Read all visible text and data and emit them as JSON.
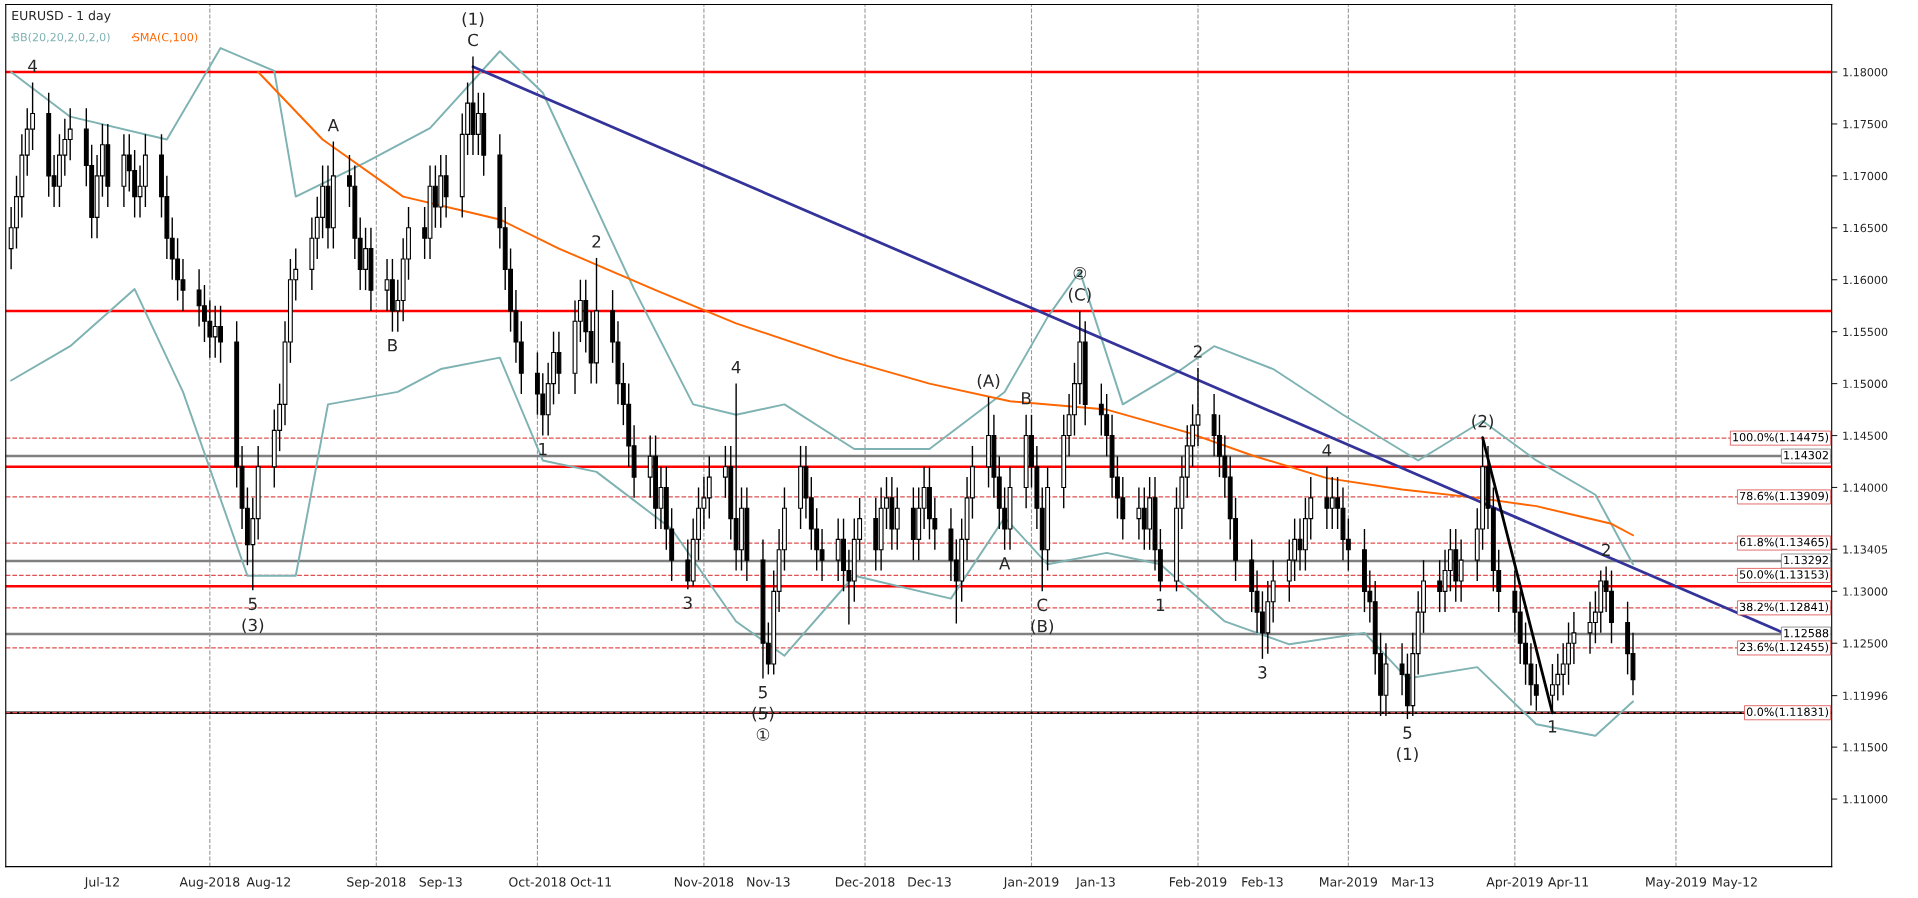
{
  "chart_data": {
    "type": "candlestick",
    "title": "EURUSD - 1 day",
    "x": [
      "2018-06-25",
      "2018-06-26",
      "2018-06-27",
      "2018-06-28",
      "2018-06-29",
      "2018-07-02",
      "2018-07-03",
      "2018-07-04",
      "2018-07-05",
      "2018-07-06",
      "2018-07-09",
      "2018-07-10",
      "2018-07-11",
      "2018-07-12",
      "2018-07-13",
      "2018-07-16",
      "2018-07-17",
      "2018-07-18",
      "2018-07-19",
      "2018-07-20",
      "2018-07-23",
      "2018-07-24",
      "2018-07-25",
      "2018-07-26",
      "2018-07-27",
      "2018-07-30",
      "2018-07-31",
      "2018-08-01",
      "2018-08-02",
      "2018-08-03",
      "2018-08-06",
      "2018-08-07",
      "2018-08-08",
      "2018-08-09",
      "2018-08-10",
      "2018-08-13",
      "2018-08-14",
      "2018-08-15",
      "2018-08-16",
      "2018-08-17",
      "2018-08-20",
      "2018-08-21",
      "2018-08-22",
      "2018-08-23",
      "2018-08-24",
      "2018-08-27",
      "2018-08-28",
      "2018-08-29",
      "2018-08-30",
      "2018-08-31",
      "2018-09-03",
      "2018-09-04",
      "2018-09-05",
      "2018-09-06",
      "2018-09-07",
      "2018-09-10",
      "2018-09-11",
      "2018-09-12",
      "2018-09-13",
      "2018-09-14",
      "2018-09-17",
      "2018-09-18",
      "2018-09-19",
      "2018-09-20",
      "2018-09-21",
      "2018-09-24",
      "2018-09-25",
      "2018-09-26",
      "2018-09-27",
      "2018-09-28",
      "2018-10-01",
      "2018-10-02",
      "2018-10-03",
      "2018-10-04",
      "2018-10-05",
      "2018-10-08",
      "2018-10-09",
      "2018-10-10",
      "2018-10-11",
      "2018-10-12",
      "2018-10-15",
      "2018-10-16",
      "2018-10-17",
      "2018-10-18",
      "2018-10-19",
      "2018-10-22",
      "2018-10-23",
      "2018-10-24",
      "2018-10-25",
      "2018-10-26",
      "2018-10-29",
      "2018-10-30",
      "2018-10-31",
      "2018-11-01",
      "2018-11-02",
      "2018-11-05",
      "2018-11-06",
      "2018-11-07",
      "2018-11-08",
      "2018-11-09",
      "2018-11-12",
      "2018-11-13",
      "2018-11-14",
      "2018-11-15",
      "2018-11-16",
      "2018-11-19",
      "2018-11-20",
      "2018-11-21",
      "2018-11-22",
      "2018-11-23",
      "2018-11-26",
      "2018-11-27",
      "2018-11-28",
      "2018-11-29",
      "2018-11-30",
      "2018-12-03",
      "2018-12-04",
      "2018-12-05",
      "2018-12-06",
      "2018-12-07",
      "2018-12-10",
      "2018-12-11",
      "2018-12-12",
      "2018-12-13",
      "2018-12-14",
      "2018-12-17",
      "2018-12-18",
      "2018-12-19",
      "2018-12-20",
      "2018-12-21",
      "2018-12-24",
      "2018-12-25",
      "2018-12-26",
      "2018-12-27",
      "2018-12-28",
      "2018-12-31",
      "2019-01-01",
      "2019-01-02",
      "2019-01-03",
      "2019-01-04",
      "2019-01-07",
      "2019-01-08",
      "2019-01-09",
      "2019-01-10",
      "2019-01-11",
      "2019-01-14",
      "2019-01-15",
      "2019-01-16",
      "2019-01-17",
      "2019-01-18",
      "2019-01-21",
      "2019-01-22",
      "2019-01-23",
      "2019-01-24",
      "2019-01-25",
      "2019-01-28",
      "2019-01-29",
      "2019-01-30",
      "2019-01-31",
      "2019-02-01",
      "2019-02-04",
      "2019-02-05",
      "2019-02-06",
      "2019-02-07",
      "2019-02-08",
      "2019-02-11",
      "2019-02-12",
      "2019-02-13",
      "2019-02-14",
      "2019-02-15",
      "2019-02-18",
      "2019-02-19",
      "2019-02-20",
      "2019-02-21",
      "2019-02-22",
      "2019-02-25",
      "2019-02-26",
      "2019-02-27",
      "2019-02-28",
      "2019-03-01",
      "2019-03-04",
      "2019-03-05",
      "2019-03-06",
      "2019-03-07",
      "2019-03-08",
      "2019-03-11",
      "2019-03-12",
      "2019-03-13",
      "2019-03-14",
      "2019-03-15",
      "2019-03-18",
      "2019-03-19",
      "2019-03-20",
      "2019-03-21",
      "2019-03-22",
      "2019-03-25",
      "2019-03-26",
      "2019-03-27",
      "2019-03-28",
      "2019-03-29",
      "2019-04-01",
      "2019-04-02",
      "2019-04-03",
      "2019-04-04",
      "2019-04-05",
      "2019-04-08",
      "2019-04-09",
      "2019-04-10",
      "2019-04-11",
      "2019-04-12",
      "2019-04-15",
      "2019-04-16",
      "2019-04-17",
      "2019-04-18",
      "2019-04-19",
      "2019-04-22",
      "2019-04-23"
    ],
    "ohlc": [
      [
        1.163,
        1.167,
        1.161,
        1.165
      ],
      [
        1.165,
        1.17,
        1.163,
        1.168
      ],
      [
        1.168,
        1.174,
        1.166,
        1.172
      ],
      [
        1.172,
        1.1765,
        1.17,
        1.1745
      ],
      [
        1.1745,
        1.179,
        1.1725,
        1.176
      ],
      [
        1.176,
        1.178,
        1.168,
        1.17
      ],
      [
        1.17,
        1.172,
        1.167,
        1.169
      ],
      [
        1.169,
        1.174,
        1.167,
        1.172
      ],
      [
        1.172,
        1.1755,
        1.17,
        1.1735
      ],
      [
        1.1735,
        1.1765,
        1.1715,
        1.1745
      ],
      [
        1.1745,
        1.1765,
        1.169,
        1.171
      ],
      [
        1.171,
        1.173,
        1.164,
        1.166
      ],
      [
        1.166,
        1.172,
        1.164,
        1.17
      ],
      [
        1.17,
        1.175,
        1.168,
        1.173
      ],
      [
        1.173,
        1.175,
        1.167,
        1.169
      ],
      [
        1.169,
        1.174,
        1.167,
        1.172
      ],
      [
        1.172,
        1.174,
        1.1685,
        1.1705
      ],
      [
        1.1705,
        1.1725,
        1.166,
        1.168
      ],
      [
        1.168,
        1.171,
        1.166,
        1.169
      ],
      [
        1.169,
        1.174,
        1.167,
        1.172
      ],
      [
        1.172,
        1.174,
        1.166,
        1.168
      ],
      [
        1.168,
        1.17,
        1.162,
        1.164
      ],
      [
        1.164,
        1.166,
        1.16,
        1.162
      ],
      [
        1.162,
        1.164,
        1.158,
        1.16
      ],
      [
        1.16,
        1.162,
        1.157,
        1.159
      ],
      [
        1.159,
        1.161,
        1.1555,
        1.1575
      ],
      [
        1.1575,
        1.1595,
        1.154,
        1.156
      ],
      [
        1.156,
        1.158,
        1.1525,
        1.1545
      ],
      [
        1.1545,
        1.1575,
        1.1525,
        1.1555
      ],
      [
        1.1555,
        1.1575,
        1.152,
        1.154
      ],
      [
        1.154,
        1.156,
        1.14,
        1.142
      ],
      [
        1.142,
        1.144,
        1.136,
        1.138
      ],
      [
        1.138,
        1.14,
        1.1325,
        1.1345
      ],
      [
        1.1345,
        1.139,
        1.1301,
        1.137
      ],
      [
        1.137,
        1.144,
        1.135,
        1.142
      ],
      [
        1.142,
        1.1475,
        1.14,
        1.1455
      ],
      [
        1.1455,
        1.15,
        1.1435,
        1.148
      ],
      [
        1.148,
        1.156,
        1.146,
        1.154
      ],
      [
        1.154,
        1.162,
        1.152,
        1.16
      ],
      [
        1.16,
        1.163,
        1.158,
        1.161
      ],
      [
        1.161,
        1.166,
        1.159,
        1.164
      ],
      [
        1.164,
        1.168,
        1.162,
        1.166
      ],
      [
        1.166,
        1.171,
        1.164,
        1.169
      ],
      [
        1.169,
        1.171,
        1.163,
        1.165
      ],
      [
        1.165,
        1.1733,
        1.163,
        1.17
      ],
      [
        1.17,
        1.172,
        1.167,
        1.169
      ],
      [
        1.169,
        1.171,
        1.162,
        1.164
      ],
      [
        1.164,
        1.166,
        1.159,
        1.161
      ],
      [
        1.161,
        1.165,
        1.159,
        1.163
      ],
      [
        1.163,
        1.165,
        1.157,
        1.159
      ],
      [
        1.159,
        1.162,
        1.157,
        1.16
      ],
      [
        1.16,
        1.162,
        1.155,
        1.157
      ],
      [
        1.157,
        1.16,
        1.155,
        1.158
      ],
      [
        1.158,
        1.164,
        1.156,
        1.162
      ],
      [
        1.162,
        1.167,
        1.16,
        1.165
      ],
      [
        1.165,
        1.167,
        1.162,
        1.164
      ],
      [
        1.164,
        1.171,
        1.162,
        1.169
      ],
      [
        1.169,
        1.171,
        1.165,
        1.167
      ],
      [
        1.167,
        1.172,
        1.165,
        1.17
      ],
      [
        1.17,
        1.172,
        1.166,
        1.168
      ],
      [
        1.168,
        1.176,
        1.166,
        1.174
      ],
      [
        1.174,
        1.179,
        1.172,
        1.177
      ],
      [
        1.177,
        1.1815,
        1.172,
        1.174
      ],
      [
        1.174,
        1.178,
        1.172,
        1.176
      ],
      [
        1.176,
        1.178,
        1.17,
        1.172
      ],
      [
        1.172,
        1.174,
        1.163,
        1.165
      ],
      [
        1.165,
        1.167,
        1.159,
        1.161
      ],
      [
        1.161,
        1.163,
        1.155,
        1.157
      ],
      [
        1.157,
        1.159,
        1.152,
        1.154
      ],
      [
        1.154,
        1.156,
        1.149,
        1.151
      ],
      [
        1.151,
        1.153,
        1.147,
        1.149
      ],
      [
        1.149,
        1.151,
        1.145,
        1.147
      ],
      [
        1.147,
        1.152,
        1.145,
        1.15
      ],
      [
        1.15,
        1.155,
        1.148,
        1.153
      ],
      [
        1.153,
        1.155,
        1.149,
        1.151
      ],
      [
        1.151,
        1.158,
        1.149,
        1.156
      ],
      [
        1.156,
        1.16,
        1.154,
        1.158
      ],
      [
        1.158,
        1.16,
        1.153,
        1.155
      ],
      [
        1.155,
        1.157,
        1.15,
        1.152
      ],
      [
        1.152,
        1.1621,
        1.15,
        1.157
      ],
      [
        1.157,
        1.159,
        1.152,
        1.154
      ],
      [
        1.154,
        1.156,
        1.148,
        1.15
      ],
      [
        1.15,
        1.152,
        1.146,
        1.148
      ],
      [
        1.148,
        1.15,
        1.142,
        1.144
      ],
      [
        1.144,
        1.146,
        1.139,
        1.141
      ],
      [
        1.141,
        1.145,
        1.139,
        1.143
      ],
      [
        1.143,
        1.145,
        1.136,
        1.138
      ],
      [
        1.138,
        1.142,
        1.136,
        1.14
      ],
      [
        1.14,
        1.142,
        1.134,
        1.136
      ],
      [
        1.136,
        1.138,
        1.131,
        1.133
      ],
      [
        1.133,
        1.135,
        1.1302,
        1.131
      ],
      [
        1.131,
        1.137,
        1.1305,
        1.135
      ],
      [
        1.135,
        1.14,
        1.133,
        1.138
      ],
      [
        1.138,
        1.141,
        1.136,
        1.139
      ],
      [
        1.139,
        1.143,
        1.137,
        1.141
      ],
      [
        1.141,
        1.144,
        1.139,
        1.142
      ],
      [
        1.142,
        1.144,
        1.135,
        1.137
      ],
      [
        1.137,
        1.15,
        1.132,
        1.134
      ],
      [
        1.134,
        1.14,
        1.132,
        1.138
      ],
      [
        1.138,
        1.14,
        1.131,
        1.133
      ],
      [
        1.133,
        1.135,
        1.1216,
        1.125
      ],
      [
        1.125,
        1.127,
        1.122,
        1.123
      ],
      [
        1.123,
        1.132,
        1.122,
        1.13
      ],
      [
        1.13,
        1.136,
        1.128,
        1.134
      ],
      [
        1.134,
        1.14,
        1.132,
        1.138
      ],
      [
        1.138,
        1.144,
        1.136,
        1.142
      ],
      [
        1.142,
        1.144,
        1.137,
        1.139
      ],
      [
        1.139,
        1.141,
        1.134,
        1.136
      ],
      [
        1.136,
        1.138,
        1.132,
        1.134
      ],
      [
        1.134,
        1.136,
        1.131,
        1.133
      ],
      [
        1.133,
        1.137,
        1.131,
        1.135
      ],
      [
        1.135,
        1.137,
        1.13,
        1.132
      ],
      [
        1.132,
        1.134,
        1.1268,
        1.131
      ],
      [
        1.131,
        1.137,
        1.129,
        1.135
      ],
      [
        1.135,
        1.139,
        1.133,
        1.137
      ],
      [
        1.137,
        1.139,
        1.132,
        1.134
      ],
      [
        1.134,
        1.14,
        1.132,
        1.138
      ],
      [
        1.138,
        1.141,
        1.136,
        1.139
      ],
      [
        1.139,
        1.141,
        1.134,
        1.136
      ],
      [
        1.136,
        1.14,
        1.134,
        1.138
      ],
      [
        1.138,
        1.14,
        1.133,
        1.135
      ],
      [
        1.135,
        1.14,
        1.133,
        1.138
      ],
      [
        1.138,
        1.142,
        1.136,
        1.14
      ],
      [
        1.14,
        1.142,
        1.135,
        1.137
      ],
      [
        1.137,
        1.139,
        1.134,
        1.136
      ],
      [
        1.136,
        1.138,
        1.131,
        1.133
      ],
      [
        1.133,
        1.135,
        1.1269,
        1.131
      ],
      [
        1.131,
        1.137,
        1.129,
        1.135
      ],
      [
        1.135,
        1.141,
        1.133,
        1.139
      ],
      [
        1.139,
        1.144,
        1.137,
        1.142
      ],
      [
        1.142,
        1.1487,
        1.14,
        1.145
      ],
      [
        1.145,
        1.147,
        1.139,
        1.141
      ],
      [
        1.141,
        1.143,
        1.136,
        1.138
      ],
      [
        1.138,
        1.14,
        1.134,
        1.136
      ],
      [
        1.136,
        1.142,
        1.134,
        1.14
      ],
      [
        1.14,
        1.147,
        1.138,
        1.145
      ],
      [
        1.145,
        1.147,
        1.14,
        1.142
      ],
      [
        1.142,
        1.144,
        1.136,
        1.138
      ],
      [
        1.138,
        1.14,
        1.13,
        1.134
      ],
      [
        1.134,
        1.142,
        1.132,
        1.14
      ],
      [
        1.14,
        1.147,
        1.138,
        1.145
      ],
      [
        1.145,
        1.149,
        1.143,
        1.147
      ],
      [
        1.147,
        1.152,
        1.145,
        1.15
      ],
      [
        1.15,
        1.157,
        1.148,
        1.154
      ],
      [
        1.154,
        1.156,
        1.146,
        1.148
      ],
      [
        1.148,
        1.15,
        1.145,
        1.147
      ],
      [
        1.147,
        1.149,
        1.143,
        1.145
      ],
      [
        1.145,
        1.147,
        1.139,
        1.141
      ],
      [
        1.141,
        1.143,
        1.137,
        1.139
      ],
      [
        1.139,
        1.141,
        1.135,
        1.137
      ],
      [
        1.137,
        1.14,
        1.135,
        1.138
      ],
      [
        1.138,
        1.14,
        1.134,
        1.136
      ],
      [
        1.136,
        1.141,
        1.134,
        1.139
      ],
      [
        1.139,
        1.141,
        1.132,
        1.134
      ],
      [
        1.134,
        1.136,
        1.13,
        1.131
      ],
      [
        1.131,
        1.14,
        1.13,
        1.138
      ],
      [
        1.138,
        1.143,
        1.136,
        1.141
      ],
      [
        1.141,
        1.146,
        1.139,
        1.144
      ],
      [
        1.144,
        1.148,
        1.142,
        1.146
      ],
      [
        1.146,
        1.1515,
        1.144,
        1.147
      ],
      [
        1.147,
        1.149,
        1.143,
        1.145
      ],
      [
        1.145,
        1.147,
        1.141,
        1.143
      ],
      [
        1.143,
        1.145,
        1.139,
        1.141
      ],
      [
        1.141,
        1.143,
        1.135,
        1.137
      ],
      [
        1.137,
        1.139,
        1.131,
        1.133
      ],
      [
        1.133,
        1.135,
        1.128,
        1.13
      ],
      [
        1.13,
        1.132,
        1.126,
        1.128
      ],
      [
        1.128,
        1.13,
        1.1235,
        1.126
      ],
      [
        1.126,
        1.131,
        1.124,
        1.129
      ],
      [
        1.129,
        1.133,
        1.127,
        1.131
      ],
      [
        1.131,
        1.135,
        1.129,
        1.133
      ],
      [
        1.133,
        1.137,
        1.131,
        1.135
      ],
      [
        1.135,
        1.137,
        1.132,
        1.134
      ],
      [
        1.134,
        1.139,
        1.132,
        1.137
      ],
      [
        1.137,
        1.141,
        1.135,
        1.139
      ],
      [
        1.139,
        1.142,
        1.136,
        1.138
      ],
      [
        1.138,
        1.141,
        1.136,
        1.139
      ],
      [
        1.139,
        1.141,
        1.136,
        1.138
      ],
      [
        1.138,
        1.14,
        1.133,
        1.135
      ],
      [
        1.135,
        1.137,
        1.132,
        1.134
      ],
      [
        1.134,
        1.136,
        1.128,
        1.13
      ],
      [
        1.13,
        1.132,
        1.127,
        1.129
      ],
      [
        1.129,
        1.131,
        1.122,
        1.124
      ],
      [
        1.124,
        1.126,
        1.118,
        1.12
      ],
      [
        1.12,
        1.125,
        1.118,
        1.123
      ],
      [
        1.123,
        1.125,
        1.12,
        1.122
      ],
      [
        1.122,
        1.124,
        1.1177,
        1.119
      ],
      [
        1.119,
        1.126,
        1.118,
        1.124
      ],
      [
        1.124,
        1.13,
        1.122,
        1.128
      ],
      [
        1.128,
        1.133,
        1.126,
        1.131
      ],
      [
        1.131,
        1.133,
        1.128,
        1.13
      ],
      [
        1.13,
        1.134,
        1.128,
        1.132
      ],
      [
        1.132,
        1.136,
        1.13,
        1.134
      ],
      [
        1.134,
        1.136,
        1.129,
        1.131
      ],
      [
        1.131,
        1.135,
        1.129,
        1.133
      ],
      [
        1.133,
        1.138,
        1.131,
        1.136
      ],
      [
        1.136,
        1.1448,
        1.134,
        1.142
      ],
      [
        1.142,
        1.144,
        1.136,
        1.138
      ],
      [
        1.138,
        1.14,
        1.13,
        1.132
      ],
      [
        1.132,
        1.134,
        1.128,
        1.13
      ],
      [
        1.13,
        1.132,
        1.126,
        1.128
      ],
      [
        1.128,
        1.13,
        1.123,
        1.125
      ],
      [
        1.125,
        1.127,
        1.121,
        1.123
      ],
      [
        1.123,
        1.125,
        1.119,
        1.121
      ],
      [
        1.121,
        1.123,
        1.1185,
        1.12
      ],
      [
        1.12,
        1.123,
        1.1183,
        1.121
      ],
      [
        1.121,
        1.124,
        1.1195,
        1.122
      ],
      [
        1.122,
        1.125,
        1.12,
        1.123
      ],
      [
        1.123,
        1.127,
        1.121,
        1.125
      ],
      [
        1.125,
        1.128,
        1.123,
        1.126
      ],
      [
        1.126,
        1.129,
        1.124,
        1.127
      ],
      [
        1.127,
        1.13,
        1.125,
        1.128
      ],
      [
        1.128,
        1.132,
        1.126,
        1.131
      ],
      [
        1.131,
        1.1324,
        1.128,
        1.13
      ],
      [
        1.13,
        1.132,
        1.125,
        1.127
      ],
      [
        1.127,
        1.129,
        1.122,
        1.124
      ],
      [
        1.124,
        1.126,
        1.12,
        1.1215
      ]
    ],
    "series": [
      {
        "type": "line",
        "name": "BB(20,20,2,0,2,0)",
        "color": "#7fb2b2",
        "x": [
          "2018-06-25",
          "2018-07-06",
          "2018-07-24",
          "2018-08-03",
          "2018-08-13",
          "2018-08-17",
          "2018-08-30",
          "2018-09-11",
          "2018-09-24",
          "2018-10-02",
          "2018-10-11",
          "2018-10-19",
          "2018-10-30",
          "2018-11-07",
          "2018-11-16",
          "2018-11-29",
          "2018-12-13",
          "2018-12-27",
          "2019-01-04",
          "2019-01-10",
          "2019-01-18",
          "2019-01-29",
          "2019-02-04",
          "2019-02-15",
          "2019-02-28",
          "2019-03-14",
          "2019-03-26",
          "2019-04-05",
          "2019-04-16",
          "2019-04-23"
        ],
        "values": [
          1.18,
          1.1757,
          1.1735,
          1.1823,
          1.1801,
          1.168,
          1.1713,
          1.1746,
          1.182,
          1.178,
          1.168,
          1.1591,
          1.148,
          1.147,
          1.148,
          1.1437,
          1.1437,
          1.1492,
          1.1564,
          1.1608,
          1.148,
          1.1514,
          1.1536,
          1.1514,
          1.147,
          1.1426,
          1.1464,
          1.1426,
          1.1393,
          1.1326
        ]
      },
      {
        "type": "line",
        "color": "#7fb2b2",
        "x": [
          "2018-06-25",
          "2018-07-06",
          "2018-07-18",
          "2018-07-27",
          "2018-08-08",
          "2018-08-17",
          "2018-08-23",
          "2018-09-05",
          "2018-09-13",
          "2018-09-24",
          "2018-10-02",
          "2018-10-12",
          "2018-10-26",
          "2018-11-07",
          "2018-11-16",
          "2018-11-29",
          "2018-12-17",
          "2018-12-27",
          "2019-01-04",
          "2019-01-15",
          "2019-01-25",
          "2019-02-06",
          "2019-02-18",
          "2019-03-04",
          "2019-03-12",
          "2019-03-25",
          "2019-04-05",
          "2019-04-16",
          "2019-04-23"
        ],
        "values": [
          1.1503,
          1.1536,
          1.1591,
          1.1492,
          1.1315,
          1.1315,
          1.148,
          1.1492,
          1.1514,
          1.1525,
          1.1426,
          1.1415,
          1.136,
          1.1271,
          1.1238,
          1.1315,
          1.1293,
          1.1371,
          1.1326,
          1.1337,
          1.1326,
          1.1271,
          1.1249,
          1.126,
          1.1216,
          1.1227,
          1.1172,
          1.1161,
          1.1194
        ]
      },
      {
        "type": "line",
        "name": "SMA(C,100)",
        "color": "#ff6600",
        "x": [
          "2018-08-10",
          "2018-08-22",
          "2018-09-06",
          "2018-09-24",
          "2018-10-05",
          "2018-10-23",
          "2018-11-07",
          "2018-11-26",
          "2018-12-13",
          "2018-12-28",
          "2019-01-15",
          "2019-01-30",
          "2019-02-11",
          "2019-02-25",
          "2019-03-11",
          "2019-03-25",
          "2019-04-05",
          "2019-04-19",
          "2019-04-23"
        ],
        "values": [
          1.18,
          1.1735,
          1.168,
          1.1658,
          1.163,
          1.159,
          1.1558,
          1.1525,
          1.15,
          1.1483,
          1.1475,
          1.1453,
          1.1431,
          1.1409,
          1.1398,
          1.139,
          1.1382,
          1.1365,
          1.1354
        ]
      },
      {
        "type": "line",
        "color": "#333399",
        "x": [
          "2018-09-19",
          "2019-05-30"
        ],
        "values": [
          1.1805,
          1.124
        ]
      },
      {
        "type": "line",
        "color": "#000000",
        "x": [
          "2019-03-26",
          "2019-04-08"
        ],
        "values": [
          1.1448,
          1.1183
        ]
      }
    ],
    "legend": "top left",
    "xlim": [
      "2018-06-24",
      "2019-05-30"
    ],
    "xticks": [
      {
        "value": "2018-07-12",
        "label": "Jul-12"
      },
      {
        "value": "2018-08-01",
        "label": "Aug-2018"
      },
      {
        "value": "2018-08-12",
        "label": "Aug-12"
      },
      {
        "value": "2018-09-01",
        "label": "Sep-2018"
      },
      {
        "value": "2018-09-13",
        "label": "Sep-13"
      },
      {
        "value": "2018-10-01",
        "label": "Oct-2018"
      },
      {
        "value": "2018-10-11",
        "label": "Oct-11"
      },
      {
        "value": "2018-11-01",
        "label": "Nov-2018"
      },
      {
        "value": "2018-11-13",
        "label": "Nov-13"
      },
      {
        "value": "2018-12-01",
        "label": "Dec-2018"
      },
      {
        "value": "2018-12-13",
        "label": "Dec-13"
      },
      {
        "value": "2019-01-01",
        "label": "Jan-2019"
      },
      {
        "value": "2019-01-13",
        "label": "Jan-13"
      },
      {
        "value": "2019-02-01",
        "label": "Feb-2019"
      },
      {
        "value": "2019-02-13",
        "label": "Feb-13"
      },
      {
        "value": "2019-03-01",
        "label": "Mar-2019"
      },
      {
        "value": "2019-03-13",
        "label": "Mar-13"
      },
      {
        "value": "2019-04-01",
        "label": "Apr-2019"
      },
      {
        "value": "2019-04-11",
        "label": "Apr-11"
      },
      {
        "value": "2019-05-01",
        "label": "May-2019"
      },
      {
        "value": "2019-05-12",
        "label": "May-12"
      }
    ],
    "ylim": [
      1.1035,
      1.1865
    ],
    "yticks": [
      {
        "value": 1.11,
        "label": "1.11000"
      },
      {
        "value": 1.115,
        "label": "1.11500"
      },
      {
        "value": 1.11996,
        "label": "1.11996"
      },
      {
        "value": 1.125,
        "label": "1.12500"
      },
      {
        "value": 1.13,
        "label": "1.13000"
      },
      {
        "value": 1.13405,
        "label": "1.13405"
      },
      {
        "value": 1.14,
        "label": "1.14000"
      },
      {
        "value": 1.145,
        "label": "1.14500"
      },
      {
        "value": 1.15,
        "label": "1.15000"
      },
      {
        "value": 1.155,
        "label": "1.15500"
      },
      {
        "value": 1.16,
        "label": "1.16000"
      },
      {
        "value": 1.165,
        "label": "1.16500"
      },
      {
        "value": 1.17,
        "label": "1.17000"
      },
      {
        "value": 1.175,
        "label": "1.17500"
      },
      {
        "value": 1.18,
        "label": "1.18000"
      }
    ],
    "ref_lines": [
      {
        "axis": "y",
        "value": 1.18,
        "color": "#ff0000",
        "line_style": "solid"
      },
      {
        "axis": "y",
        "value": 1.157,
        "color": "#ff0000",
        "line_style": "solid"
      },
      {
        "axis": "y",
        "value": 1.142,
        "color": "#ff0000",
        "line_style": "solid"
      },
      {
        "axis": "y",
        "value": 1.1305,
        "color": "#ff0000",
        "line_style": "solid"
      },
      {
        "axis": "y",
        "value": 1.11831,
        "color": "#000000",
        "line_style": "solid"
      },
      {
        "axis": "y",
        "value": 1.14302,
        "color": "#808080",
        "line_style": "solid",
        "label": "1.14302"
      },
      {
        "axis": "y",
        "value": 1.13292,
        "color": "#808080",
        "line_style": "solid",
        "label": "1.13292"
      },
      {
        "axis": "y",
        "value": 1.12588,
        "color": "#808080",
        "line_style": "solid",
        "label": "1.12588"
      },
      {
        "axis": "y",
        "value": 1.14475,
        "color": "#e05050",
        "line_style": "dashed",
        "label": "100.0%(1.14475)"
      },
      {
        "axis": "y",
        "value": 1.13909,
        "color": "#e05050",
        "line_style": "dashed",
        "label": "78.6%(1.13909)"
      },
      {
        "axis": "y",
        "value": 1.13465,
        "color": "#e05050",
        "line_style": "dashed",
        "label": "61.8%(1.13465)"
      },
      {
        "axis": "y",
        "value": 1.13153,
        "color": "#e05050",
        "line_style": "dashed",
        "label": "50.0%(1.13153)"
      },
      {
        "axis": "y",
        "value": 1.12841,
        "color": "#e05050",
        "line_style": "dashed",
        "label": "38.2%(1.12841)"
      },
      {
        "axis": "y",
        "value": 1.12455,
        "color": "#e05050",
        "line_style": "dashed",
        "label": "23.6%(1.12455)"
      },
      {
        "axis": "y",
        "value": 1.11831,
        "color": "#e05050",
        "line_style": "dashed",
        "label": "0.0%(1.11831)"
      },
      {
        "axis": "x",
        "value": "2018-08-01",
        "color": "#999999",
        "line_style": "dashed"
      },
      {
        "axis": "x",
        "value": "2018-09-01",
        "color": "#999999",
        "line_style": "dashed"
      },
      {
        "axis": "x",
        "value": "2018-10-01",
        "color": "#999999",
        "line_style": "dashed"
      },
      {
        "axis": "x",
        "value": "2018-11-01",
        "color": "#999999",
        "line_style": "dashed"
      },
      {
        "axis": "x",
        "value": "2018-12-01",
        "color": "#999999",
        "line_style": "dashed"
      },
      {
        "axis": "x",
        "value": "2019-01-01",
        "color": "#999999",
        "line_style": "dashed"
      },
      {
        "axis": "x",
        "value": "2019-02-01",
        "color": "#999999",
        "line_style": "dashed"
      },
      {
        "axis": "x",
        "value": "2019-03-01",
        "color": "#999999",
        "line_style": "dashed"
      },
      {
        "axis": "x",
        "value": "2019-04-01",
        "color": "#999999",
        "line_style": "dashed"
      },
      {
        "axis": "x",
        "value": "2019-05-01",
        "color": "#999999",
        "line_style": "dashed"
      }
    ],
    "annotations": [
      {
        "text": "4",
        "x": "2018-06-29",
        "y": 1.179
      },
      {
        "text": "(1)\nC",
        "x": "2018-09-19",
        "y": 1.1815
      },
      {
        "text": "A",
        "x": "2018-08-24",
        "y": 1.1733
      },
      {
        "text": "B",
        "x": "2018-09-04",
        "y": 1.155
      },
      {
        "text": "2",
        "x": "2018-10-12",
        "y": 1.1621
      },
      {
        "text": "1",
        "x": "2018-10-02",
        "y": 1.145
      },
      {
        "text": "5\n(3)",
        "x": "2018-08-09",
        "y": 1.1301
      },
      {
        "text": "3",
        "x": "2018-10-29",
        "y": 1.1302
      },
      {
        "text": "4",
        "x": "2018-11-07",
        "y": 1.15
      },
      {
        "text": "5\n(5)\n①",
        "x": "2018-11-12",
        "y": 1.1216
      },
      {
        "text": "(A)",
        "x": "2018-12-24",
        "y": 1.1487
      },
      {
        "text": "B",
        "x": "2018-12-31",
        "y": 1.147
      },
      {
        "text": "A",
        "x": "2018-12-27",
        "y": 1.134
      },
      {
        "text": "C\n(B)",
        "x": "2019-01-03",
        "y": 1.13
      },
      {
        "text": "②\n(C)",
        "x": "2019-01-10",
        "y": 1.157
      },
      {
        "text": "2",
        "x": "2019-02-01",
        "y": 1.1515
      },
      {
        "text": "1",
        "x": "2019-01-25",
        "y": 1.13
      },
      {
        "text": "3",
        "x": "2019-02-13",
        "y": 1.1235
      },
      {
        "text": "4",
        "x": "2019-02-25",
        "y": 1.142
      },
      {
        "text": "5\n(1)",
        "x": "2019-03-12",
        "y": 1.1177
      },
      {
        "text": "(2)",
        "x": "2019-03-26",
        "y": 1.1448
      },
      {
        "text": "2",
        "x": "2019-04-18",
        "y": 1.1324
      },
      {
        "text": "1",
        "x": "2019-04-08",
        "y": 1.1183
      }
    ]
  }
}
